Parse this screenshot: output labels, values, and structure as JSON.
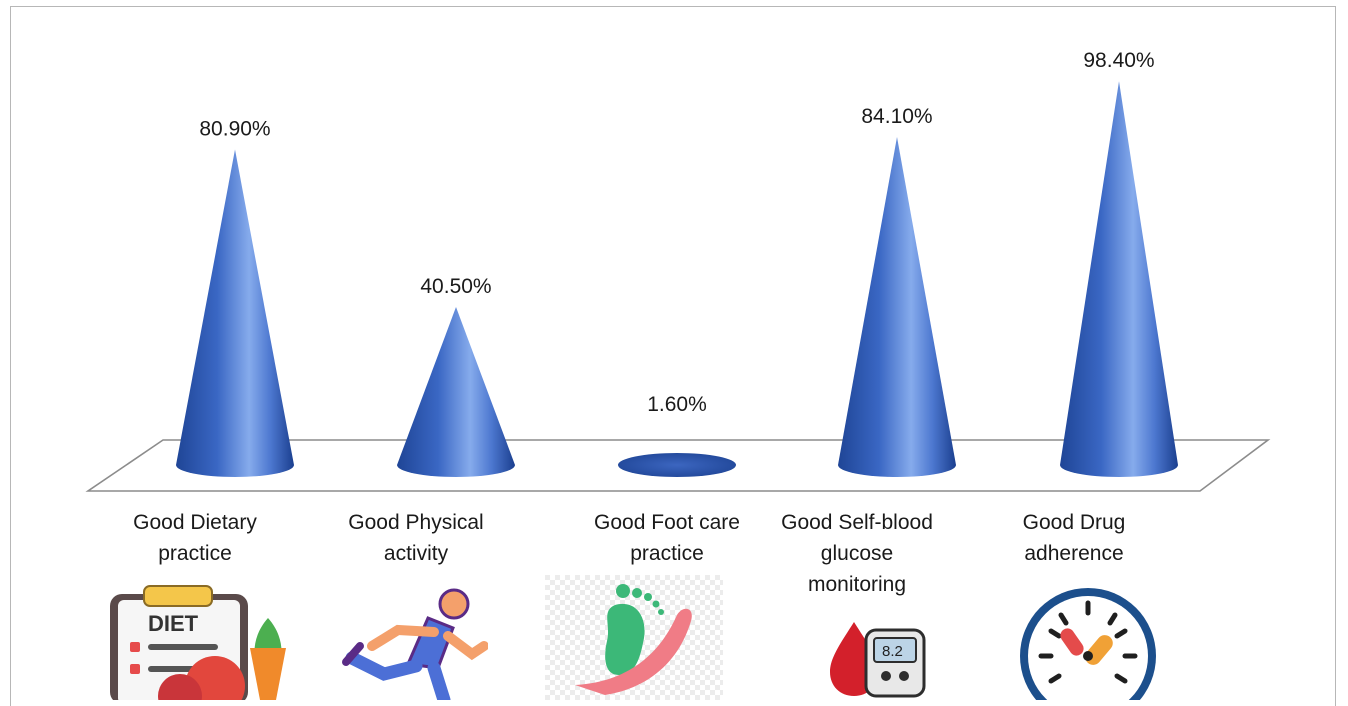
{
  "chart_data": {
    "type": "bar",
    "style": "3d-cone",
    "categories": [
      "Good Dietary\npractice",
      "Good Physical\nactivity",
      "Good Foot care\npractice",
      "Good Self-blood\nglucose\nmonitoring",
      "Good Drug\nadherence"
    ],
    "values": [
      80.9,
      40.5,
      1.6,
      84.1,
      98.4
    ],
    "data_labels": [
      "80.90%",
      "40.50%",
      "1.60%",
      "84.10%",
      "98.40%"
    ],
    "ylim": [
      0,
      100
    ],
    "grid": false,
    "legend": "none",
    "colors": {
      "cone_light": "#7fa6e8",
      "cone_mid": "#3a67c4",
      "cone_dark": "#1b3f8f",
      "floor_edge": "#8c8c8c"
    }
  },
  "icons": [
    "diet-icon",
    "runner-icon",
    "foot-care-icon",
    "glucose-meter-icon",
    "drug-clock-icon"
  ],
  "glucose_meter_reading": "8.2",
  "diet_board_text": "DIET"
}
